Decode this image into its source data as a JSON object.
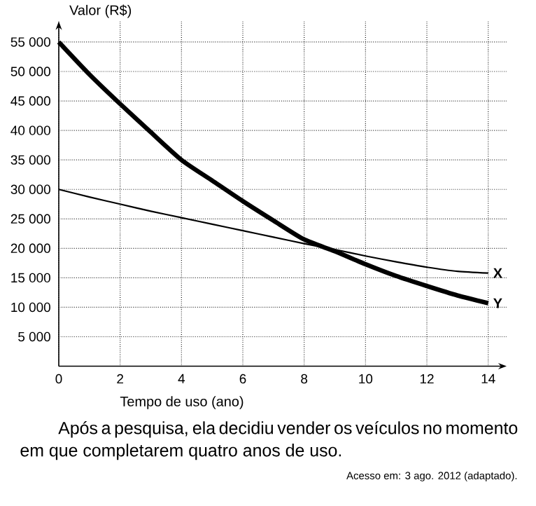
{
  "chart_data": {
    "type": "line",
    "xlabel": "Tempo de uso (ano)",
    "ylabel": "Valor (R$)",
    "x": [
      0,
      1,
      2,
      3,
      4,
      5,
      6,
      7,
      8,
      9,
      10,
      11,
      12,
      13,
      14
    ],
    "series": [
      {
        "name": "X",
        "color": "#000000",
        "values": [
          30000,
          28700,
          27500,
          26300,
          25200,
          24100,
          23000,
          21900,
          20800,
          19800,
          18700,
          17700,
          16800,
          16100,
          15800
        ]
      },
      {
        "name": "Y",
        "color": "#000000",
        "values": [
          55000,
          49500,
          44500,
          39700,
          35000,
          31500,
          28000,
          24700,
          21500,
          19500,
          17300,
          15300,
          13600,
          12000,
          10700
        ]
      }
    ],
    "xlim": [
      0,
      14.6
    ],
    "ylim": [
      0,
      58500
    ],
    "xticks": [
      0,
      2,
      4,
      6,
      8,
      10,
      12,
      14
    ],
    "yticks": [
      {
        "value": 5000,
        "label": "5 000"
      },
      {
        "value": 10000,
        "label": "10 000"
      },
      {
        "value": 15000,
        "label": "15 000"
      },
      {
        "value": 20000,
        "label": "20 000"
      },
      {
        "value": 25000,
        "label": "25 000"
      },
      {
        "value": 30000,
        "label": "30 000"
      },
      {
        "value": 35000,
        "label": "35 000"
      },
      {
        "value": 40000,
        "label": "40 000"
      },
      {
        "value": 45000,
        "label": "45 000"
      },
      {
        "value": 50000,
        "label": "50 000"
      },
      {
        "value": 55000,
        "label": "55 000"
      }
    ],
    "grid": true,
    "line_style": "solid",
    "marker": "none",
    "annotations": [
      "Após a pesquisa, ela decidiu vender os veículos no momento em que completarem quatro anos de uso.",
      "Acesso em: 3 ago. 2012 (adaptado)."
    ]
  }
}
